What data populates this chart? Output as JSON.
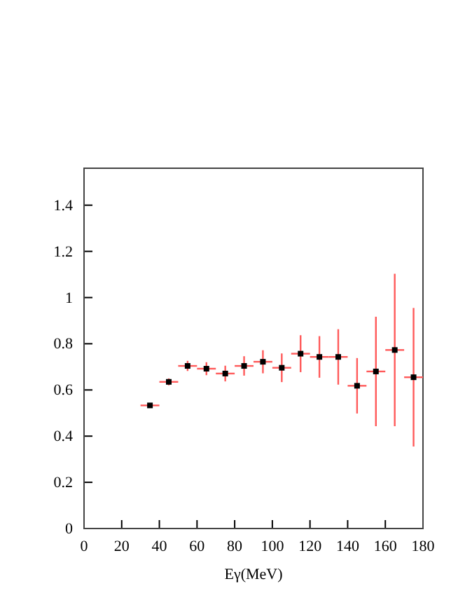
{
  "chart_data": {
    "type": "scatter",
    "xlabel": "Eγ(MeV)",
    "marker": "square",
    "x": [
      35,
      45,
      55,
      65,
      75,
      85,
      95,
      105,
      115,
      125,
      135,
      145,
      155,
      165,
      175
    ],
    "series": [
      {
        "color": "#000000",
        "values": [
          0.533,
          0.635,
          0.704,
          0.692,
          0.671,
          0.704,
          0.722,
          0.696,
          0.757,
          0.743,
          0.743,
          0.618,
          0.68,
          0.773,
          0.655
        ],
        "errors": [
          0.01,
          0.015,
          0.022,
          0.028,
          0.034,
          0.042,
          0.05,
          0.062,
          0.08,
          0.09,
          0.12,
          0.12,
          0.237,
          0.33,
          0.3
        ],
        "xerrors": [
          5,
          5,
          5,
          5,
          5,
          5,
          5,
          5,
          5,
          5,
          5,
          5,
          5,
          5,
          5
        ]
      }
    ],
    "xlim": [
      0,
      180
    ],
    "xticks": [
      0,
      20,
      40,
      60,
      80,
      100,
      120,
      140,
      160,
      180
    ],
    "ylim": [
      0,
      1.56
    ],
    "yticks": [
      0,
      0.2,
      0.4,
      0.6,
      0.8,
      1,
      1.2,
      1.4
    ]
  }
}
